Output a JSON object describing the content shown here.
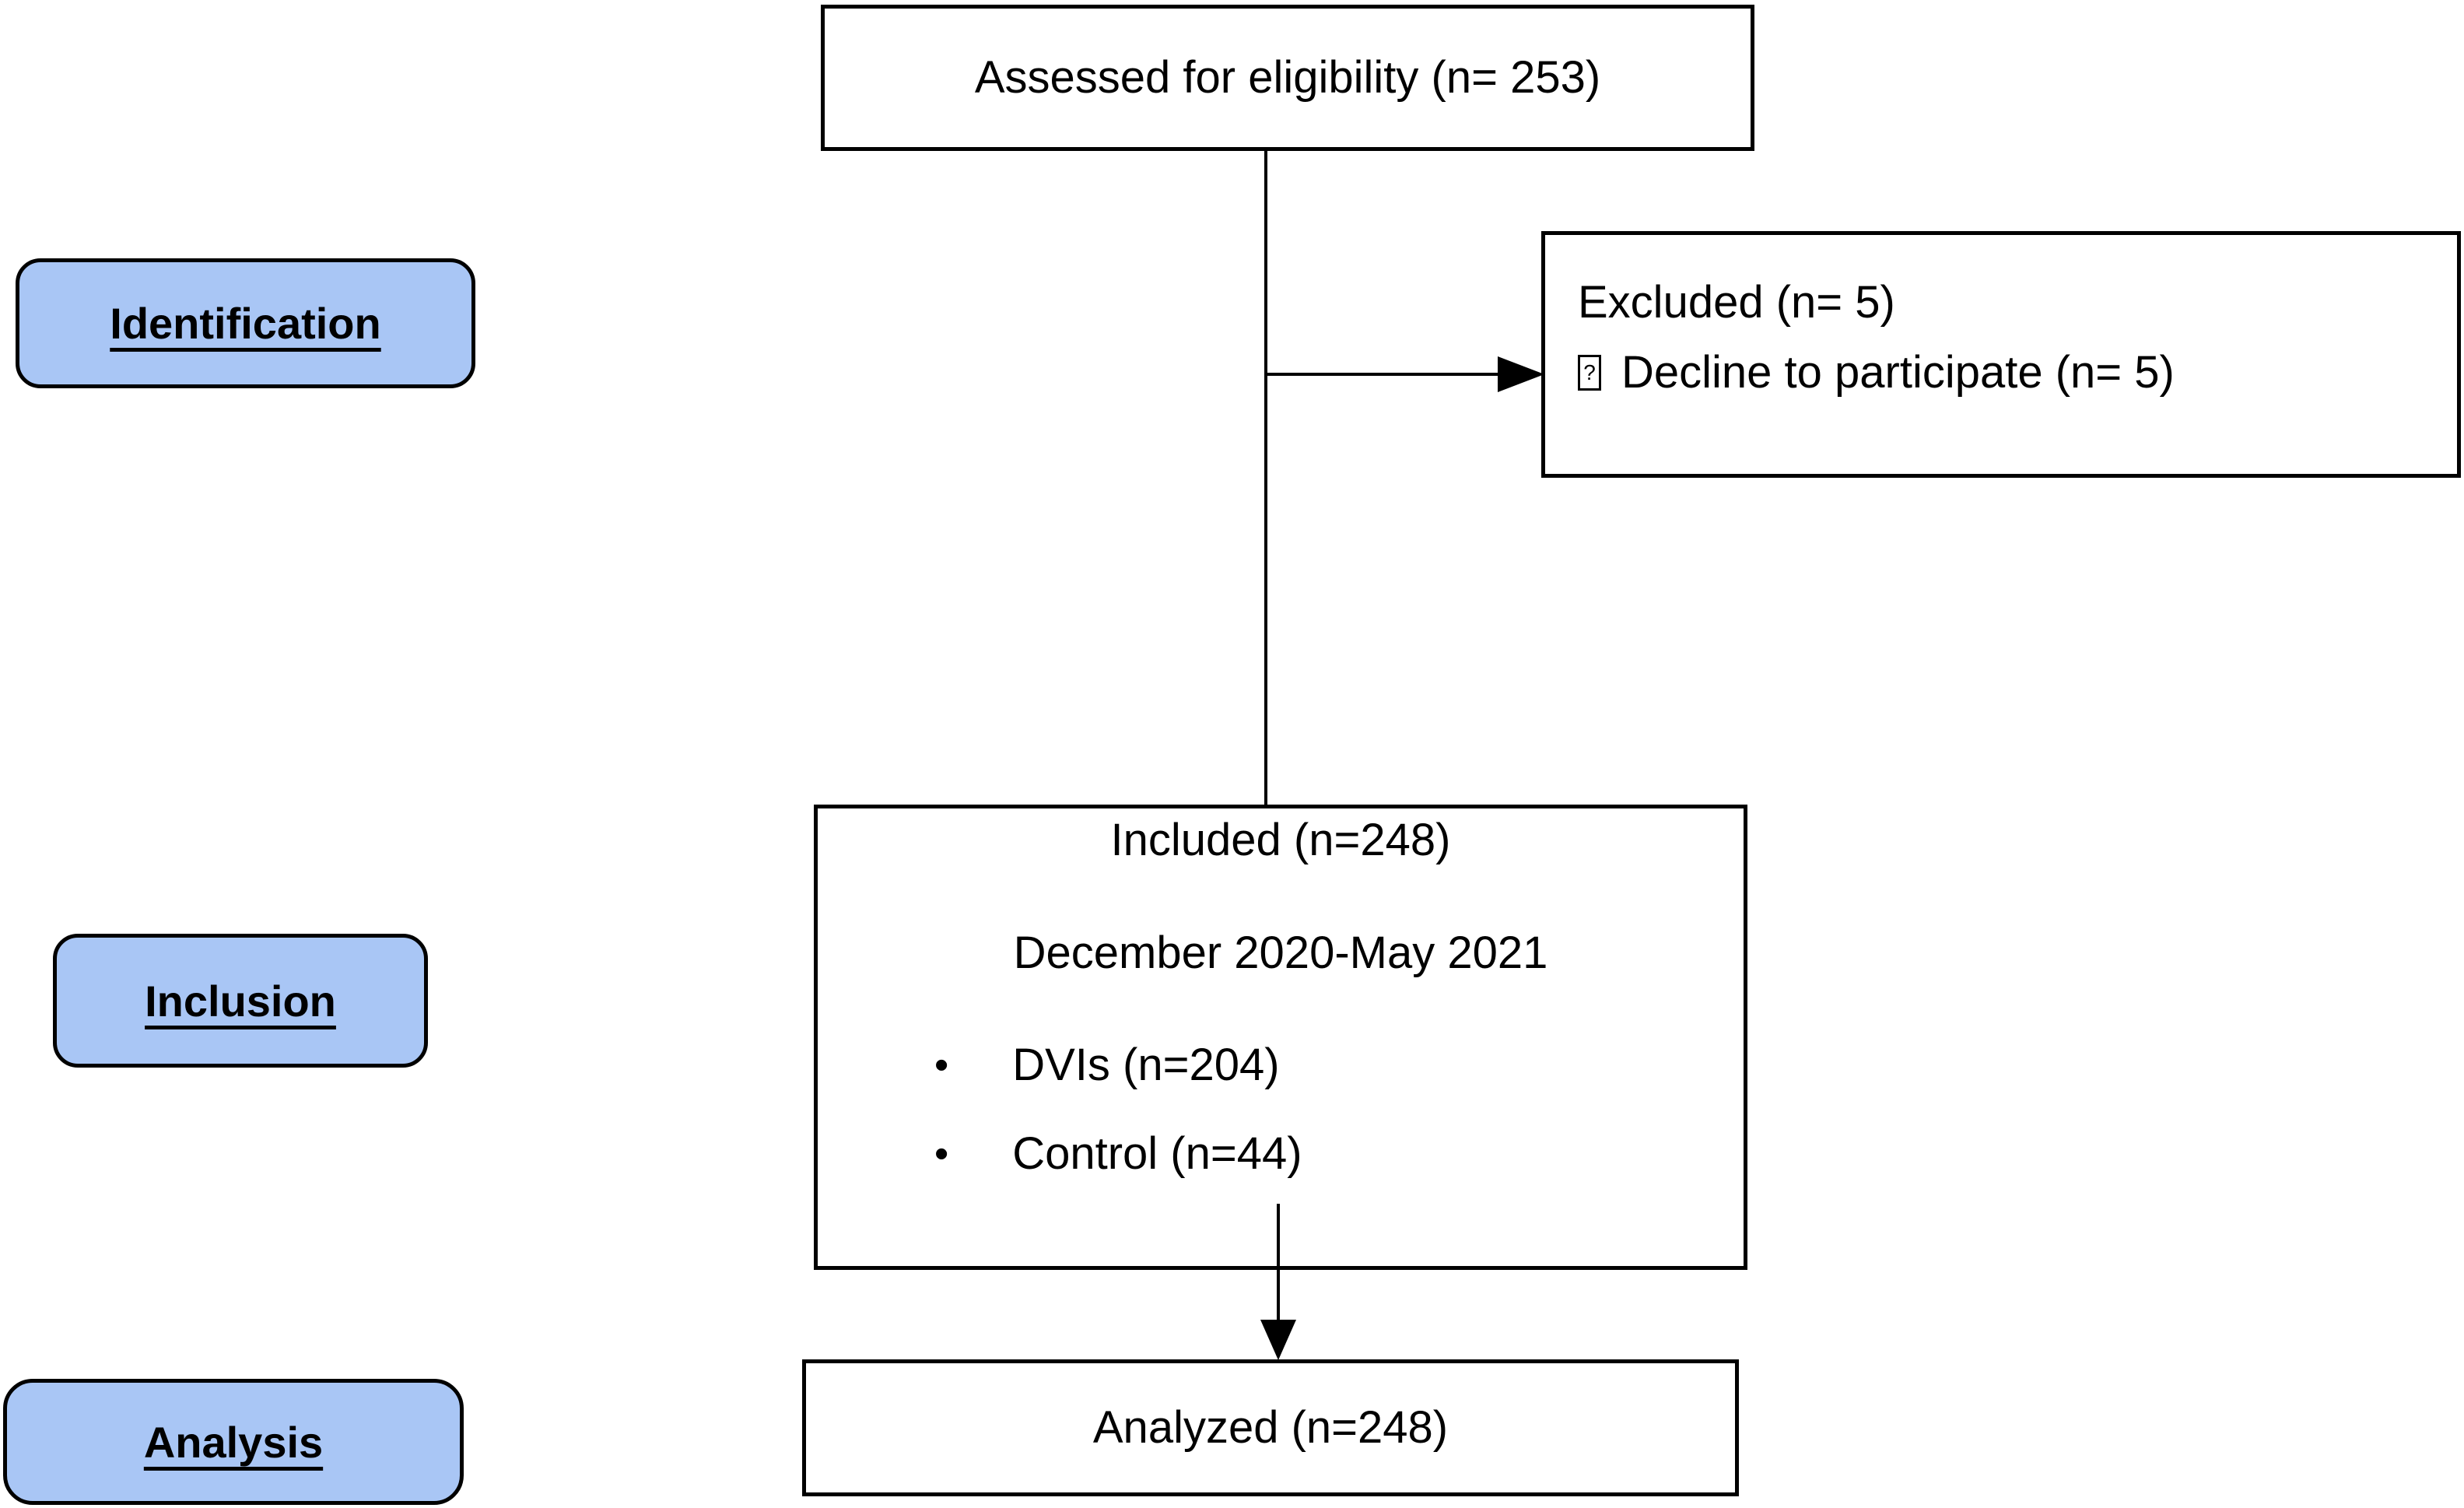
{
  "colors": {
    "stage_fill": "#A9C6F5",
    "box_bg": "#FFFFFF",
    "page_bg": "#FFFFFF",
    "border": "#000000",
    "text": "#000000"
  },
  "stages": {
    "identification": "Identification",
    "inclusion": "Inclusion",
    "analysis": "Analysis"
  },
  "assessed": {
    "text": "Assessed for eligibility (n= 253)"
  },
  "excluded": {
    "title": "Excluded (n= 5)",
    "bullet_glyph": "?",
    "item": "Decline to participate (n= 5)"
  },
  "included": {
    "title": "Included (n=248)",
    "subtitle": "December 2020-May 2021",
    "bullet_glyph": "•",
    "items": [
      {
        "text": "DVIs (n=204)"
      },
      {
        "text": "Control (n=44)"
      }
    ]
  },
  "analyzed": {
    "text": "Analyzed (n=248)"
  }
}
